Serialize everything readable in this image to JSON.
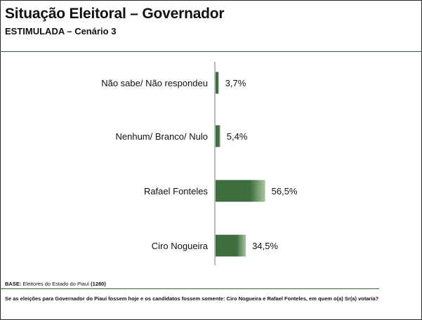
{
  "header": {
    "title": "Situação Eleitoral – Governador",
    "subtitle": "ESTIMULADA – Cenário 3"
  },
  "chart_data": {
    "type": "bar",
    "orientation": "horizontal",
    "categories": [
      "Não sabe/ Não respondeu",
      "Nenhum/ Branco/ Nulo",
      "Rafael Fonteles",
      "Ciro Nogueira"
    ],
    "values": [
      3.7,
      5.4,
      56.5,
      34.5
    ],
    "value_labels": [
      "3,7%",
      "5,4%",
      "56,5%",
      "34,5%"
    ],
    "xlim": [
      0,
      100
    ],
    "colors": {
      "bar_dark": "#3e6e3e",
      "bar_light": "#a9c6a0"
    }
  },
  "footer": {
    "base_label": "BASE:",
    "base_text": " Eleitores do Estado do Piauí ",
    "base_count": "(1280)",
    "question": "Se as eleições para Governador do Piauí fossem hoje e os candidatos fossem somente: Ciro Nogueira e Rafael Fonteles, em quem o(a) Sr(a) votaria?"
  }
}
